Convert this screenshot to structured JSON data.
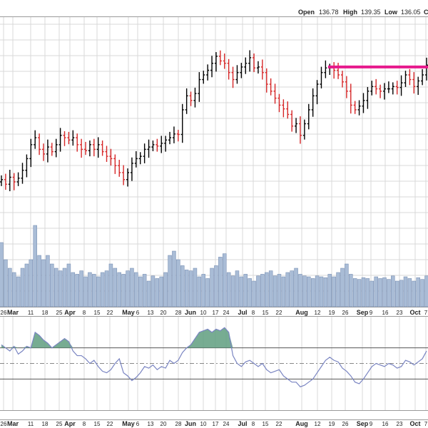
{
  "header": {
    "open_label": "Open",
    "open_value": "136.78",
    "high_label": "High",
    "high_value": "139.35",
    "low_label": "Low",
    "low_value": "136.05",
    "close_label_partial": "C"
  },
  "colors": {
    "up_bar": "#000000",
    "down_bar": "#d62728",
    "resistance_line": "#e6198c",
    "volume_fill": "#a9bcd6",
    "volume_stroke": "#6f87ad",
    "indicator_line": "#7a85c2",
    "indicator_fill": "#5f9e7f",
    "grid": "#d9d9d9",
    "background": "#ffffff"
  },
  "chart_data": {
    "type": "ohlc",
    "panels": [
      "price",
      "volume",
      "indicator"
    ],
    "x_axis_labels": [
      "26",
      "Mar",
      "11",
      "18",
      "25",
      "Apr",
      "8",
      "15",
      "22",
      "May",
      "6",
      "13",
      "20",
      "28",
      "Jun",
      "10",
      "17",
      "24",
      "Jul",
      "8",
      "15",
      "22",
      "Aug",
      "12",
      "19",
      "26",
      "Sep",
      "9",
      "16",
      "23",
      "Oct",
      "7"
    ],
    "month_labels": [
      "Mar",
      "Apr",
      "May",
      "Jun",
      "Jul",
      "Aug",
      "Sep",
      "Oct"
    ],
    "resistance_level": 136.2,
    "price_ylim": [
      100,
      146
    ],
    "price_close": [
      112.0,
      111.0,
      112.5,
      111.5,
      112.3,
      114.0,
      116.5,
      119.5,
      121.0,
      118.5,
      117.5,
      119.0,
      118.0,
      119.5,
      121.5,
      121.0,
      120.5,
      121.0,
      119.5,
      118.5,
      118.2,
      119.5,
      118.5,
      119.5,
      118.0,
      117.0,
      116.5,
      115.0,
      113.5,
      112.0,
      113.5,
      115.5,
      116.5,
      117.0,
      118.5,
      119.0,
      119.5,
      119.2,
      119.8,
      120.5,
      121.0,
      121.8,
      121.7,
      127.0,
      130.0,
      129.0,
      130.5,
      133.5,
      134.5,
      135.5,
      137.0,
      138.5,
      137.5,
      137.0,
      135.0,
      133.5,
      135.0,
      136.2,
      137.0,
      138.2,
      136.0,
      136.2,
      135.0,
      132.5,
      131.0,
      129.5,
      128.0,
      127.2,
      126.0,
      123.5,
      124.0,
      121.5,
      124.0,
      127.0,
      130.0,
      132.5,
      135.0,
      136.0,
      136.0,
      135.5,
      134.5,
      133.0,
      131.0,
      128.0,
      127.0,
      127.8,
      129.0,
      131.0,
      132.0,
      131.5,
      131.0,
      131.5,
      131.5,
      132.0,
      131.8,
      132.8,
      134.5,
      133.5,
      132.0,
      133.2,
      134.5,
      136.6
    ],
    "volume": [
      0.75,
      0.55,
      0.45,
      0.4,
      0.35,
      0.45,
      0.5,
      0.55,
      0.95,
      0.6,
      0.55,
      0.6,
      0.5,
      0.45,
      0.42,
      0.45,
      0.5,
      0.4,
      0.38,
      0.42,
      0.35,
      0.4,
      0.38,
      0.35,
      0.4,
      0.42,
      0.5,
      0.45,
      0.4,
      0.38,
      0.42,
      0.45,
      0.4,
      0.35,
      0.38,
      0.3,
      0.36,
      0.33,
      0.35,
      0.4,
      0.6,
      0.65,
      0.55,
      0.48,
      0.43,
      0.42,
      0.45,
      0.35,
      0.38,
      0.33,
      0.45,
      0.48,
      0.58,
      0.62,
      0.4,
      0.36,
      0.42,
      0.35,
      0.38,
      0.33,
      0.3,
      0.36,
      0.38,
      0.4,
      0.42,
      0.36,
      0.38,
      0.35,
      0.4,
      0.42,
      0.45,
      0.38,
      0.36,
      0.35,
      0.33,
      0.36,
      0.35,
      0.34,
      0.38,
      0.35,
      0.4,
      0.45,
      0.5,
      0.38,
      0.33,
      0.32,
      0.34,
      0.33,
      0.3,
      0.35,
      0.33,
      0.34,
      0.32,
      0.36,
      0.3,
      0.31,
      0.35,
      0.33,
      0.3,
      0.34,
      0.32,
      0.36
    ],
    "indicator": [
      62,
      60,
      58,
      61,
      56,
      58,
      61,
      60,
      70,
      68,
      65,
      63,
      60,
      62,
      64,
      66,
      64,
      58,
      55,
      55,
      53,
      50,
      52,
      48,
      45,
      44,
      46,
      50,
      53,
      44,
      42,
      39,
      41,
      44,
      48,
      47,
      49,
      46,
      48,
      47,
      52,
      50,
      52,
      57,
      60,
      62,
      66,
      70,
      71,
      72,
      70,
      72,
      71,
      73,
      70,
      55,
      50,
      48,
      51,
      52,
      50,
      48,
      50,
      46,
      44,
      45,
      46,
      42,
      40,
      38,
      38,
      35,
      36,
      38,
      40,
      44,
      48,
      52,
      54,
      52,
      51,
      47,
      45,
      42,
      38,
      37,
      40,
      44,
      48,
      50,
      49,
      48,
      50,
      49,
      47,
      48,
      52,
      51,
      49,
      51,
      53,
      58
    ],
    "indicator_ylim": [
      20,
      80
    ],
    "indicator_levels": [
      60,
      50,
      40
    ]
  }
}
